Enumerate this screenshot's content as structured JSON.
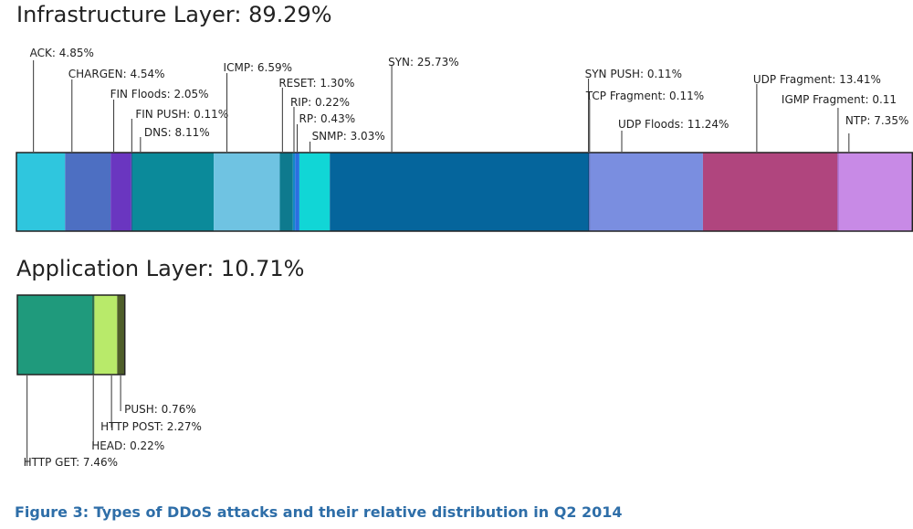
{
  "chart_data": [
    {
      "type": "bar",
      "orientation": "stacked-horizontal",
      "title": "Infrastructure Layer: 89.29%",
      "unit": "%",
      "segments": [
        {
          "name": "ACK",
          "label": "ACK: 4.85%",
          "value": 4.85,
          "color": "#2fc6de"
        },
        {
          "name": "CHARGEN",
          "label": "CHARGEN: 4.54%",
          "value": 4.54,
          "color": "#4d6fc2"
        },
        {
          "name": "FIN Floods",
          "label": "FIN Floods: 2.05%",
          "value": 2.05,
          "color": "#6a36c0"
        },
        {
          "name": "FIN PUSH",
          "label": "FIN PUSH: 0.11%",
          "value": 0.11,
          "color": "#1b4f8e"
        },
        {
          "name": "DNS",
          "label": "DNS: 8.11%",
          "value": 8.11,
          "color": "#0b8a9a"
        },
        {
          "name": "ICMP",
          "label": "ICMP: 6.59%",
          "value": 6.59,
          "color": "#6fc3e2"
        },
        {
          "name": "RESET",
          "label": "RESET: 1.30%",
          "value": 1.3,
          "color": "#0e7a8e"
        },
        {
          "name": "RIP",
          "label": "RIP: 0.22%",
          "value": 0.22,
          "color": "#1488c8"
        },
        {
          "name": "RP",
          "label": "RP: 0.43%",
          "value": 0.43,
          "color": "#2a6fe0"
        },
        {
          "name": "SNMP",
          "label": "SNMP: 3.03%",
          "value": 3.03,
          "color": "#11d6d6"
        },
        {
          "name": "SYN",
          "label": "SYN: 25.73%",
          "value": 25.73,
          "color": "#05659c"
        },
        {
          "name": "SYN PUSH",
          "label": "SYN PUSH: 0.11%",
          "value": 0.11,
          "color": "#0a4c80"
        },
        {
          "name": "TCP Fragment",
          "label": "TCP Fragment: 0.11%",
          "value": 0.11,
          "color": "#5566b8"
        },
        {
          "name": "UDP Floods",
          "label": "UDP Floods: 11.24%",
          "value": 11.24,
          "color": "#7a8ee0"
        },
        {
          "name": "UDP Fragment",
          "label": "UDP Fragment: 13.41%",
          "value": 13.41,
          "color": "#b0457e"
        },
        {
          "name": "IGMP Fragment",
          "label": "IGMP Fragment: 0.11",
          "value": 0.11,
          "color": "#9a5cc0"
        },
        {
          "name": "NTP",
          "label": "NTP: 7.35%",
          "value": 7.35,
          "color": "#c88ae6"
        }
      ]
    },
    {
      "type": "bar",
      "orientation": "stacked-horizontal",
      "title": "Application Layer: 10.71%",
      "unit": "%",
      "segments": [
        {
          "name": "HTTP GET",
          "label": "HTTP GET: 7.46%",
          "value": 7.46,
          "color": "#1f9a7c"
        },
        {
          "name": "HEAD",
          "label": "HEAD: 0.22%",
          "value": 0.22,
          "color": "#2f6f4e"
        },
        {
          "name": "HTTP POST",
          "label": "HTTP POST: 2.27%",
          "value": 2.27,
          "color": "#b8ea6a"
        },
        {
          "name": "PUSH",
          "label": "PUSH:  0.76%",
          "value": 0.76,
          "color": "#4e5e2a"
        }
      ]
    }
  ],
  "caption": "Figure 3: Types of DDoS attacks and their relative distribution in Q2 2014"
}
